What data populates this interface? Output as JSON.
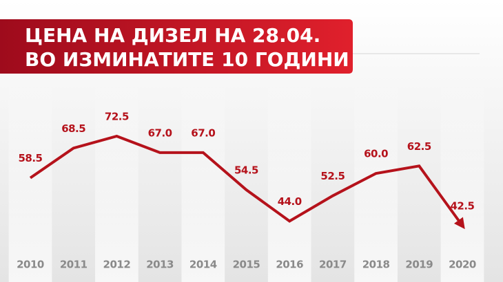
{
  "chart_data": {
    "type": "line",
    "title": [
      "ЦЕНА НА ДИЗЕЛ НА 28.04.",
      "ВО ИЗМИНАТИТЕ 10 ГОДИНИ"
    ],
    "categories": [
      "2010",
      "2011",
      "2012",
      "2013",
      "2014",
      "2015",
      "2016",
      "2017",
      "2018",
      "2019",
      "2020"
    ],
    "values": [
      58.5,
      68.5,
      72.5,
      67.0,
      67.0,
      54.5,
      44.0,
      52.5,
      60.0,
      62.5,
      42.5
    ],
    "value_labels": [
      "58.5",
      "68.5",
      "72.5",
      "67.0",
      "67.0",
      "54.5",
      "44.0",
      "52.5",
      "60.0",
      "62.5",
      "42.5"
    ],
    "color": "#b5121b"
  }
}
